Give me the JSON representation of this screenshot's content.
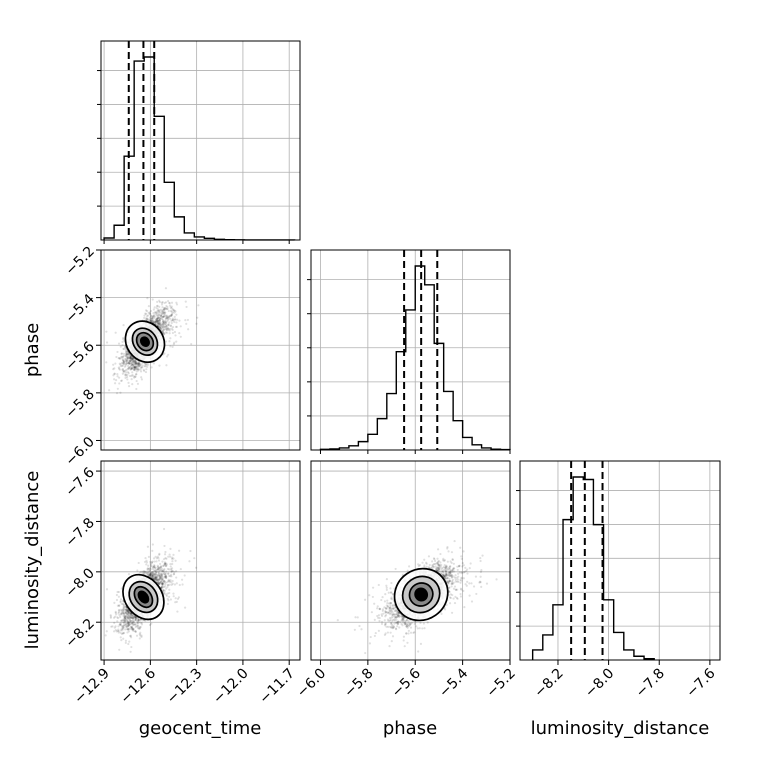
{
  "chart_data": {
    "type": "corner",
    "parameters": [
      "geocent_time",
      "phase",
      "luminosity_distance"
    ],
    "grid": true,
    "quantile_lines": "dashed",
    "axes": {
      "geocent_time": {
        "xlim": [
          -12.92,
          -11.63
        ],
        "ticks": [
          -12.9,
          -12.6,
          -12.3,
          -12.0,
          -11.7
        ],
        "tick_labels": [
          "−12.9",
          "−12.6",
          "−12.3",
          "−12.0",
          "−11.7"
        ]
      },
      "phase": {
        "lim": [
          -6.04,
          -5.2
        ],
        "ticks": [
          -6.0,
          -5.8,
          -5.6,
          -5.4,
          -5.2
        ],
        "tick_labels": [
          "−6.0",
          "−5.8",
          "−5.6",
          "−5.4",
          "−5.2"
        ]
      },
      "luminosity_distance": {
        "lim": [
          -8.35,
          -7.56
        ],
        "ticks": [
          -8.2,
          -8.0,
          -7.8,
          -7.6
        ],
        "tick_labels": [
          "−8.2",
          "−8.0",
          "−7.8",
          "−7.6"
        ]
      }
    },
    "histograms": [
      {
        "name": "geocent_time",
        "bin_edges": [
          -12.9,
          -12.835,
          -12.77,
          -12.705,
          -12.64,
          -12.575,
          -12.51,
          -12.445,
          -12.38,
          -12.315,
          -12.25,
          -12.185,
          -12.12,
          -12.055,
          -11.99,
          -11.925,
          -11.86,
          -11.795,
          -11.73,
          -11.665
        ],
        "counts": [
          0.6,
          4.4,
          25.0,
          53.4,
          54.6,
          36.9,
          17.2,
          6.9,
          2.1,
          0.9,
          0.5,
          0.2,
          0.1,
          0.05,
          0.03,
          0.02,
          0.02,
          0.02,
          0.01
        ],
        "quantiles": [
          -12.74,
          -12.645,
          -12.575
        ]
      },
      {
        "name": "phase",
        "bin_edges": [
          -6.0,
          -5.96,
          -5.92,
          -5.88,
          -5.84,
          -5.8,
          -5.76,
          -5.72,
          -5.68,
          -5.64,
          -5.6,
          -5.56,
          -5.52,
          -5.48,
          -5.44,
          -5.4,
          -5.36,
          -5.32,
          -5.28,
          -5.24,
          -5.2
        ],
        "counts": [
          0.3,
          0.5,
          1.0,
          2.0,
          4.0,
          7.5,
          15.0,
          27.0,
          47.0,
          67.0,
          88.0,
          79.0,
          51.0,
          28.0,
          14.0,
          6.0,
          2.5,
          1.0,
          0.4,
          0.2
        ],
        "quantiles": [
          -5.647,
          -5.575,
          -5.507
        ]
      },
      {
        "name": "luminosity_distance",
        "bin_edges": [
          -8.3,
          -8.26,
          -8.22,
          -8.18,
          -8.14,
          -8.1,
          -8.06,
          -8.02,
          -7.98,
          -7.94,
          -7.9,
          -7.86,
          -7.82
        ],
        "counts": [
          4.0,
          10.0,
          22.0,
          56.0,
          73.0,
          72.0,
          54.0,
          24.0,
          11.0,
          4.0,
          1.5,
          0.5
        ],
        "quantiles": [
          -8.148,
          -8.094,
          -8.024
        ]
      }
    ],
    "scatter_panels": [
      {
        "x": "geocent_time",
        "y": "phase",
        "center": [
          -12.635,
          -5.585
        ],
        "std": [
          0.07,
          0.06
        ],
        "corr": 0.7,
        "contours": [
          {
            "x_semi": 0.12,
            "y_semi": 0.09,
            "shade": "#ffffff"
          },
          {
            "x_semi": 0.075,
            "y_semi": 0.06,
            "shade": "#c8c8c8"
          },
          {
            "x_semi": 0.05,
            "y_semi": 0.04,
            "shade": "#888888"
          },
          {
            "x_semi": 0.025,
            "y_semi": 0.02,
            "shade": "#000000"
          }
        ]
      },
      {
        "x": "geocent_time",
        "y": "luminosity_distance",
        "center": [
          -12.645,
          -8.1
        ],
        "std": [
          0.07,
          0.06
        ],
        "corr": 0.65,
        "contours": [
          {
            "x_semi": 0.12,
            "y_semi": 0.095,
            "shade": "#ffffff"
          },
          {
            "x_semi": 0.085,
            "y_semi": 0.065,
            "shade": "#c8c8c8"
          },
          {
            "x_semi": 0.05,
            "y_semi": 0.045,
            "shade": "#888888"
          },
          {
            "x_semi": 0.027,
            "y_semi": 0.025,
            "shade": "#000000"
          }
        ]
      },
      {
        "x": "phase",
        "y": "luminosity_distance",
        "center": [
          -5.575,
          -8.09
        ],
        "std": [
          0.07,
          0.06
        ],
        "corr": 0.6,
        "contours": [
          {
            "x_semi": 0.115,
            "y_semi": 0.1,
            "shade": "#ffffff"
          },
          {
            "x_semi": 0.08,
            "y_semi": 0.07,
            "shade": "#c8c8c8"
          },
          {
            "x_semi": 0.05,
            "y_semi": 0.045,
            "shade": "#888888"
          },
          {
            "x_semi": 0.025,
            "y_semi": 0.025,
            "shade": "#000000"
          }
        ]
      }
    ]
  }
}
